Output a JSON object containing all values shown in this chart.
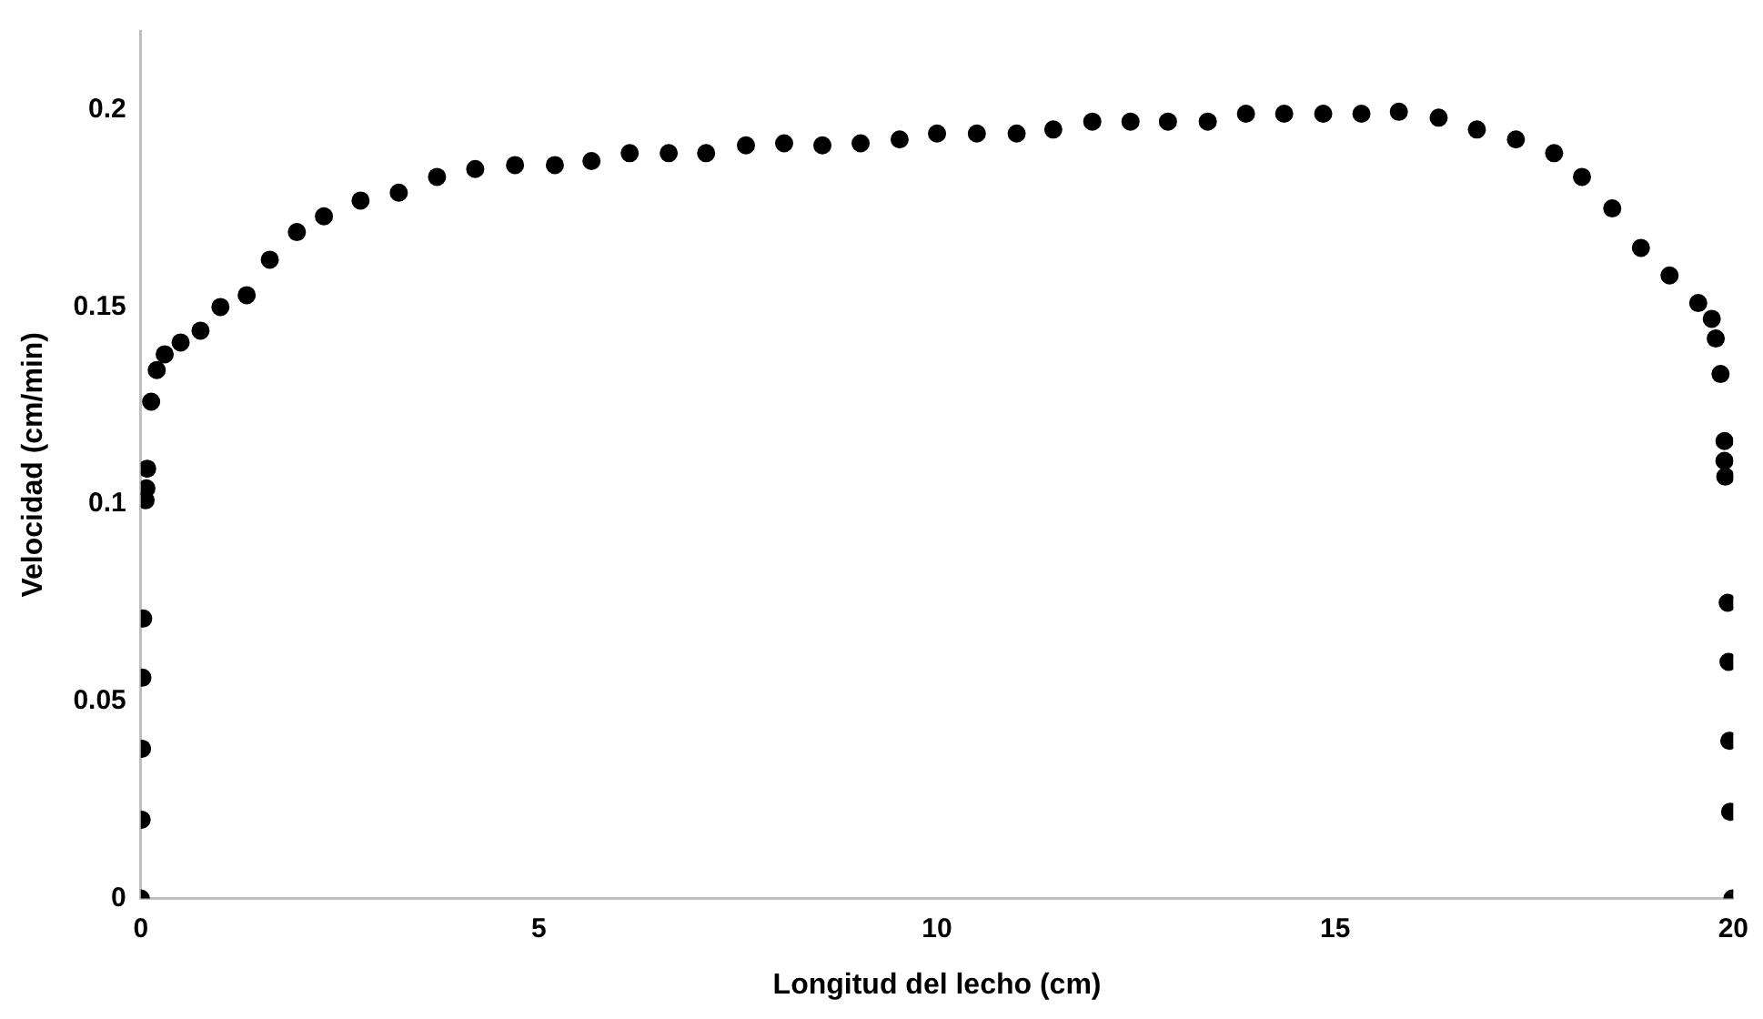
{
  "chart_data": {
    "type": "scatter",
    "xlabel": "Longitud del lecho (cm)",
    "ylabel": "Velocidad (cm/min)",
    "xlim": [
      0,
      20
    ],
    "xticks": [
      0,
      5,
      10,
      15,
      20
    ],
    "ylim": [
      0,
      0.22
    ],
    "yticks": [
      0,
      0.05,
      0.1,
      0.15,
      0.2
    ],
    "grid": false,
    "legend": false,
    "marker": "circle",
    "series": [
      {
        "color": "#000000",
        "x": [
          0,
          0.01,
          0.015,
          0.02,
          0.03,
          0.06,
          0.07,
          0.08,
          0.13,
          0.2,
          0.3,
          0.5,
          0.75,
          1.0,
          1.33,
          1.62,
          1.96,
          2.3,
          2.76,
          3.24,
          3.72,
          4.2,
          4.7,
          5.2,
          5.66,
          6.14,
          6.63,
          7.1,
          7.6,
          8.08,
          8.56,
          9.04,
          9.53,
          10.0,
          10.5,
          11.0,
          11.46,
          11.95,
          12.43,
          12.9,
          13.4,
          13.88,
          14.36,
          14.85,
          15.33,
          15.8,
          16.3,
          16.78,
          17.27,
          17.75,
          18.1,
          18.48,
          18.84,
          19.2,
          19.56,
          19.73,
          19.78,
          19.84,
          19.89,
          19.89,
          19.9,
          19.93,
          19.94,
          19.95,
          19.96,
          19.99
        ],
        "values": [
          0,
          0.02,
          0.038,
          0.056,
          0.071,
          0.101,
          0.104,
          0.109,
          0.126,
          0.134,
          0.138,
          0.141,
          0.144,
          0.15,
          0.153,
          0.162,
          0.169,
          0.173,
          0.177,
          0.179,
          0.183,
          0.185,
          0.186,
          0.186,
          0.187,
          0.189,
          0.189,
          0.189,
          0.191,
          0.1915,
          0.191,
          0.1915,
          0.1925,
          0.194,
          0.194,
          0.194,
          0.195,
          0.197,
          0.197,
          0.197,
          0.197,
          0.199,
          0.199,
          0.199,
          0.199,
          0.1995,
          0.198,
          0.195,
          0.1925,
          0.189,
          0.183,
          0.175,
          0.165,
          0.158,
          0.151,
          0.147,
          0.142,
          0.133,
          0.116,
          0.111,
          0.107,
          0.075,
          0.06,
          0.04,
          0.022,
          0
        ]
      }
    ]
  }
}
